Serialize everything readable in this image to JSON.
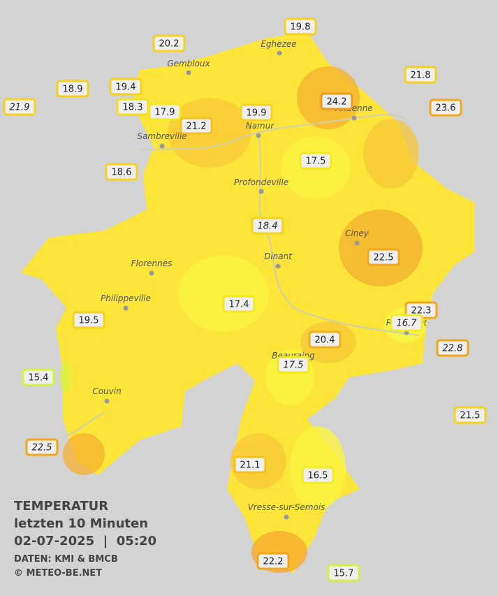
{
  "legend": {
    "title": "TEMPERATUR",
    "period": "letzten 10 Minuten",
    "datetime": "02-07-2025  |  05:20",
    "source": "DATEN: KMI & BMCB",
    "copyright": "© METEO-BE.NET"
  },
  "cities": [
    "Eghezee",
    "Gembloux",
    "Namur",
    "Andenne",
    "Sambreville",
    "Profondeville",
    "Ciney",
    "Florennes",
    "Dinant",
    "Philippeville",
    "Rochefort",
    "Beauraing",
    "Couvin",
    "Vresse-sur-Semois"
  ],
  "stations": [
    {
      "value": 19.8,
      "color": "#f5d21e",
      "italic": false
    },
    {
      "value": 20.2,
      "color": "#f5d21e",
      "italic": false
    },
    {
      "value": 21.8,
      "color": "#f5d21e",
      "italic": false
    },
    {
      "value": 18.9,
      "color": "#f5d21e",
      "italic": false
    },
    {
      "value": 19.4,
      "color": "#f5d21e",
      "italic": false
    },
    {
      "value": 21.9,
      "color": "#f5d21e",
      "italic": true
    },
    {
      "value": 24.2,
      "color": "#ef9a1a",
      "italic": false
    },
    {
      "value": 23.6,
      "color": "#f0a81a",
      "italic": false
    },
    {
      "value": 18.3,
      "color": "#f5e01e",
      "italic": false
    },
    {
      "value": 17.9,
      "color": "#f5e81e",
      "italic": false
    },
    {
      "value": 19.9,
      "color": "#f5d21e",
      "italic": false
    },
    {
      "value": 21.2,
      "color": "#f3c21e",
      "italic": false
    },
    {
      "value": 17.5,
      "color": "#f5e81e",
      "italic": false
    },
    {
      "value": 18.6,
      "color": "#f5d21e",
      "italic": false
    },
    {
      "value": 18.4,
      "color": "#f5d21e",
      "italic": true
    },
    {
      "value": 22.5,
      "color": "#f0a81a",
      "italic": false
    },
    {
      "value": 17.4,
      "color": "#f5e81e",
      "italic": false
    },
    {
      "value": 19.5,
      "color": "#f5d21e",
      "italic": false
    },
    {
      "value": 22.3,
      "color": "#f0a81a",
      "italic": false
    },
    {
      "value": 16.7,
      "color": "#f0ec2a",
      "italic": true
    },
    {
      "value": 20.4,
      "color": "#f0b01a",
      "italic": false
    },
    {
      "value": 22.8,
      "color": "#f0a81a",
      "italic": true
    },
    {
      "value": 17.5,
      "color": "#f5e81e",
      "italic": true
    },
    {
      "value": 15.4,
      "color": "#d8f040",
      "italic": false
    },
    {
      "value": 21.5,
      "color": "#f5d21e",
      "italic": false
    },
    {
      "value": 22.5,
      "color": "#f0a81a",
      "italic": true
    },
    {
      "value": 21.1,
      "color": "#f3c21e",
      "italic": false
    },
    {
      "value": 16.5,
      "color": "#f0ec2a",
      "italic": false
    },
    {
      "value": 22.2,
      "color": "#f0a81a",
      "italic": false
    },
    {
      "value": 15.7,
      "color": "#d8f040",
      "italic": false
    }
  ]
}
